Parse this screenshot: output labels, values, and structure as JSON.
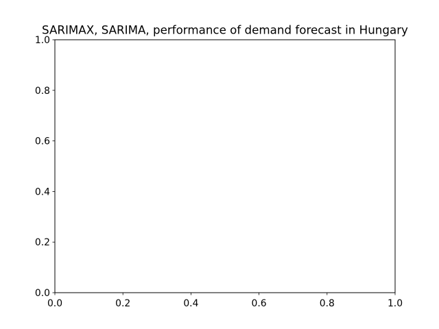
{
  "chart_data": {
    "type": "line",
    "title": "SARIMAX, SARIMA, performance of demand forecast in Hungary",
    "xlabel": "",
    "ylabel": "",
    "xlim": [
      0.0,
      1.0
    ],
    "ylim": [
      0.0,
      1.0
    ],
    "x_ticks": [
      "0.0",
      "0.2",
      "0.4",
      "0.6",
      "0.8",
      "1.0"
    ],
    "y_ticks": [
      "0.0",
      "0.2",
      "0.4",
      "0.6",
      "0.8",
      "1.0"
    ],
    "series": [],
    "grid": false,
    "legend": "none"
  }
}
